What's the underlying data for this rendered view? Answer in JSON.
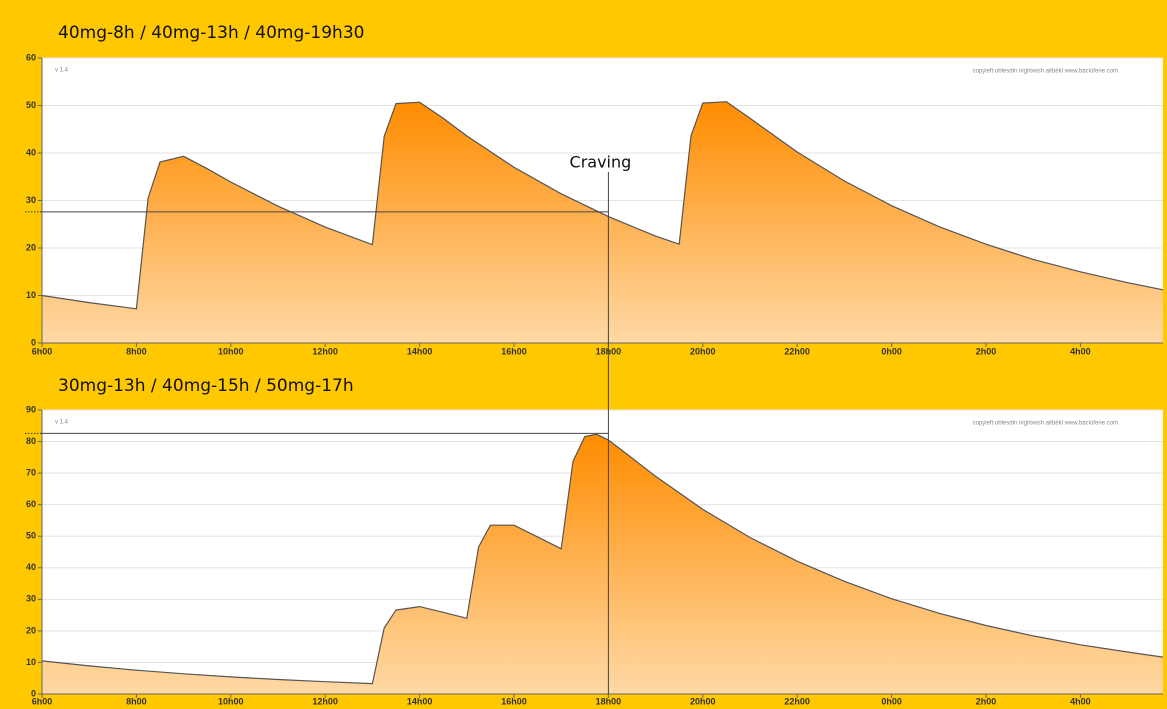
{
  "chart_data": [
    {
      "type": "area",
      "title": "40mg-8h / 40mg-13h / 40mg-19h30",
      "version": "v 1.4",
      "credit": "copyleft oblesdin nightwish aitbékl www.baclofene.com",
      "color": "#ff8c00",
      "x": [
        6,
        7,
        8,
        8.25,
        8.5,
        9,
        9.5,
        10,
        11,
        12,
        13,
        13.25,
        13.5,
        14,
        14.5,
        15,
        16,
        17,
        18,
        19,
        19.5,
        19.75,
        20,
        20.5,
        21,
        22,
        23,
        24,
        25,
        26,
        27,
        28,
        29,
        29.75
      ],
      "values": [
        10,
        8.5,
        7.2,
        30.6,
        38.1,
        39.3,
        36.7,
        33.9,
        28.8,
        24.4,
        20.7,
        43.5,
        50.4,
        50.7,
        47.3,
        43.6,
        37.0,
        31.4,
        26.6,
        22.5,
        20.8,
        43.6,
        50.5,
        50.8,
        47.3,
        40.2,
        34.1,
        28.9,
        24.5,
        20.8,
        17.6,
        15.0,
        12.7,
        11.2
      ],
      "xlim": [
        6,
        29.75
      ],
      "xticks": [
        {
          "value": 6,
          "label": "6h00"
        },
        {
          "value": 8,
          "label": "8h00"
        },
        {
          "value": 10,
          "label": "10h00"
        },
        {
          "value": 12,
          "label": "12h00"
        },
        {
          "value": 14,
          "label": "14h00"
        },
        {
          "value": 16,
          "label": "16h00"
        },
        {
          "value": 18,
          "label": "18h00"
        },
        {
          "value": 20,
          "label": "20h00"
        },
        {
          "value": 22,
          "label": "22h00"
        },
        {
          "value": 24,
          "label": "0h00"
        },
        {
          "value": 26,
          "label": "2h00"
        },
        {
          "value": 28,
          "label": "4h00"
        }
      ],
      "ylim": [
        0,
        60
      ],
      "yticks": [
        0,
        10,
        20,
        30,
        40,
        50,
        60
      ],
      "grid": true,
      "annotation": {
        "label": "Craving",
        "x": 18,
        "y": 27.6
      }
    },
    {
      "type": "area",
      "title": "30mg-13h / 40mg-15h / 50mg-17h",
      "version": "v 1.4",
      "credit": "copyleft oblesdin nightwish aitbékl www.baclofene.com",
      "color": "#ff8c00",
      "x": [
        6,
        7,
        8,
        9,
        10,
        11,
        12,
        13,
        13.25,
        13.5,
        14,
        14.5,
        15,
        15.25,
        15.5,
        16,
        16.5,
        17,
        17.25,
        17.5,
        17.75,
        18,
        18.5,
        19,
        20,
        21,
        22,
        23,
        24,
        25,
        26,
        27,
        28,
        29,
        29.75
      ],
      "values": [
        10.5,
        8.9,
        7.55,
        6.4,
        5.43,
        4.6,
        3.9,
        3.31,
        20.9,
        26.6,
        27.7,
        25.9,
        24.0,
        46.6,
        53.5,
        53.5,
        49.8,
        46.0,
        73.7,
        81.6,
        82.3,
        80.5,
        74.8,
        69.0,
        58.5,
        49.6,
        42.1,
        35.7,
        30.2,
        25.6,
        21.7,
        18.4,
        15.6,
        13.3,
        11.7
      ],
      "xlim": [
        6,
        29.75
      ],
      "xticks": [
        {
          "value": 6,
          "label": "6h00"
        },
        {
          "value": 8,
          "label": "8h00"
        },
        {
          "value": 10,
          "label": "10h00"
        },
        {
          "value": 12,
          "label": "12h00"
        },
        {
          "value": 14,
          "label": "14h00"
        },
        {
          "value": 16,
          "label": "16h00"
        },
        {
          "value": 18,
          "label": "18h00"
        },
        {
          "value": 20,
          "label": "20h00"
        },
        {
          "value": 22,
          "label": "22h00"
        },
        {
          "value": 24,
          "label": "0h00"
        },
        {
          "value": 26,
          "label": "2h00"
        },
        {
          "value": 28,
          "label": "4h00"
        }
      ],
      "ylim": [
        0,
        90
      ],
      "yticks": [
        0,
        10,
        20,
        30,
        40,
        50,
        60,
        70,
        80,
        90
      ],
      "grid": true,
      "marker": {
        "x": 18,
        "y": 82.6
      }
    }
  ]
}
